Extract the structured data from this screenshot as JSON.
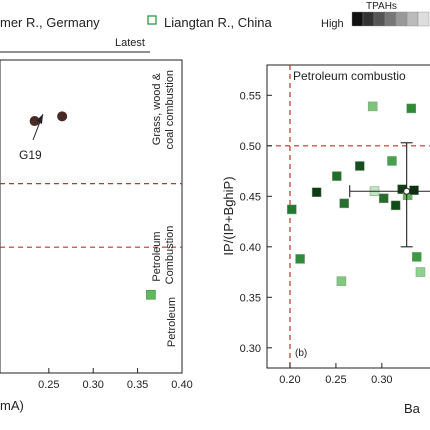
{
  "legend": {
    "left_entry": "mer R., Germany",
    "right_entry": "Liangtan R., China",
    "gradient_title": "TPAHs",
    "gradient_high": "High",
    "latest_label": "Latest"
  },
  "chart_data": [
    {
      "type": "scatter",
      "panel": "a",
      "xlabel": "mA)",
      "xticks": [
        "0.25",
        "0.30",
        "0.35",
        "0.40"
      ],
      "xlim": [
        0.195,
        0.4
      ],
      "ylim": [
        0.0,
        1.0
      ],
      "thresholds_y": [
        0.605,
        0.402
      ],
      "region_labels": [
        "Grass, wood & coal combustion",
        "Petroleum Combustion",
        "Petroleum"
      ],
      "series": [
        {
          "name": "mer R., Germany",
          "marker": "circle",
          "color": "#4a2a24",
          "points": [
            {
              "x": 0.234,
              "y": 0.805
            },
            {
              "x": 0.265,
              "y": 0.82
            }
          ]
        },
        {
          "name": "Liangtan R., China",
          "marker": "square",
          "color": "#5fb85f",
          "points": [
            {
              "x": 0.365,
              "y": 0.25
            }
          ]
        }
      ],
      "annotations": [
        {
          "text": "G19",
          "target": {
            "x": 0.265,
            "y": 0.82
          }
        }
      ]
    },
    {
      "type": "scatter",
      "panel": "b",
      "ylabel": "IP/(IP+BghiP)",
      "xlabel": "Ba",
      "xticks": [
        "0.20",
        "0.25",
        "0.30"
      ],
      "yticks": [
        "0.30",
        "0.35",
        "0.40",
        "0.45",
        "0.50",
        "0.55"
      ],
      "xlim": [
        0.175,
        0.36
      ],
      "ylim": [
        0.28,
        0.58
      ],
      "threshold_x": 0.2,
      "threshold_y": 0.5,
      "region_label": "Petroleum combustio",
      "panel_label": "(b)",
      "errorbar": {
        "x": 0.327,
        "y": 0.455,
        "xerr": [
          0.062,
          0.03
        ],
        "yerr": [
          0.055,
          0.048
        ]
      },
      "points": [
        {
          "x": 0.202,
          "y": 0.437,
          "color": "#1f7a2f"
        },
        {
          "x": 0.211,
          "y": 0.388,
          "color": "#2e8b3e"
        },
        {
          "x": 0.229,
          "y": 0.454,
          "color": "#0c3d14"
        },
        {
          "x": 0.251,
          "y": 0.47,
          "color": "#1f6f2a"
        },
        {
          "x": 0.256,
          "y": 0.366,
          "color": "#7ec97e"
        },
        {
          "x": 0.259,
          "y": 0.443,
          "color": "#2b6e34"
        },
        {
          "x": 0.276,
          "y": 0.48,
          "color": "#174e20"
        },
        {
          "x": 0.29,
          "y": 0.539,
          "color": "#7cc47c"
        },
        {
          "x": 0.292,
          "y": 0.455,
          "color": "#bfe6bf"
        },
        {
          "x": 0.302,
          "y": 0.448,
          "color": "#2a6a2f"
        },
        {
          "x": 0.311,
          "y": 0.485,
          "color": "#47a24e"
        },
        {
          "x": 0.315,
          "y": 0.441,
          "color": "#0f4a19"
        },
        {
          "x": 0.322,
          "y": 0.457,
          "color": "#123d18"
        },
        {
          "x": 0.328,
          "y": 0.451,
          "color": "#5fb85f"
        },
        {
          "x": 0.332,
          "y": 0.537,
          "color": "#2f8a38"
        },
        {
          "x": 0.335,
          "y": 0.456,
          "color": "#0d2f11"
        },
        {
          "x": 0.338,
          "y": 0.39,
          "color": "#3c9a45"
        },
        {
          "x": 0.342,
          "y": 0.375,
          "color": "#8cd38c"
        }
      ]
    }
  ]
}
